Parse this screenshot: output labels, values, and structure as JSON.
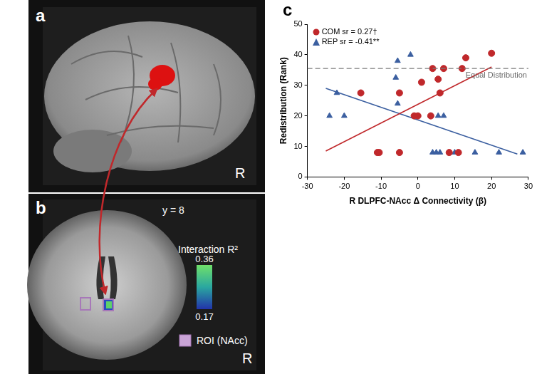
{
  "panels": {
    "a": {
      "label": "a",
      "side": "R"
    },
    "b": {
      "label": "b",
      "side": "R",
      "slice": "y = 8",
      "colorbar": {
        "title": "Interaction R²",
        "range": [
          0.17,
          0.36
        ],
        "ticks": [
          0.17,
          0.36
        ]
      },
      "roi_label": "ROI (NAcc)"
    }
  },
  "chart_data": {
    "type": "scatter",
    "label": "c",
    "x_label": "R DLPFC-NAcc Δ Connectivity (β)",
    "y_label": "Redistribution (Rank)",
    "xlim": [
      -30,
      30
    ],
    "xticks": [
      -30,
      -20,
      -10,
      0,
      10,
      20,
      30
    ],
    "ylim": [
      0,
      50
    ],
    "yticks": [
      0,
      10,
      20,
      30,
      40,
      50
    ],
    "grid": false,
    "legend": "upper left",
    "reference_line": {
      "value": 35.5,
      "label": "Equal Distribution",
      "line_style": "dashed"
    },
    "series": [
      {
        "name": "COM sr = 0.27†",
        "color": "#c0282b",
        "marker": "circle",
        "x": [
          -15.5,
          -11,
          -10.5,
          -5,
          -5,
          -1,
          0,
          1,
          3.5,
          4,
          5.5,
          6,
          7,
          8.5,
          11,
          12,
          13,
          20
        ],
        "values": [
          27.5,
          8,
          8,
          27.5,
          8,
          20,
          20,
          31,
          20,
          35.5,
          32,
          27.5,
          35.5,
          8,
          8,
          35.5,
          39,
          40.5
        ],
        "fit": {
          "x": [
            -25,
            20
          ],
          "values": [
            8.5,
            36
          ]
        }
      },
      {
        "name": "REP sr = -0.41**",
        "color": "#3b5fa0",
        "marker": "triangle",
        "x": [
          -24,
          -22,
          -20,
          -6,
          -5.5,
          -5.5,
          -2,
          3.5,
          4,
          5,
          5.5,
          6,
          7,
          10,
          15.5,
          22,
          28.5
        ],
        "values": [
          20,
          27.5,
          20,
          32.5,
          38,
          24,
          40,
          20,
          8,
          8,
          20,
          8,
          20,
          8,
          8,
          8,
          8
        ],
        "fit": {
          "x": [
            -25,
            27
          ],
          "values": [
            29,
            7.5
          ]
        }
      }
    ]
  }
}
